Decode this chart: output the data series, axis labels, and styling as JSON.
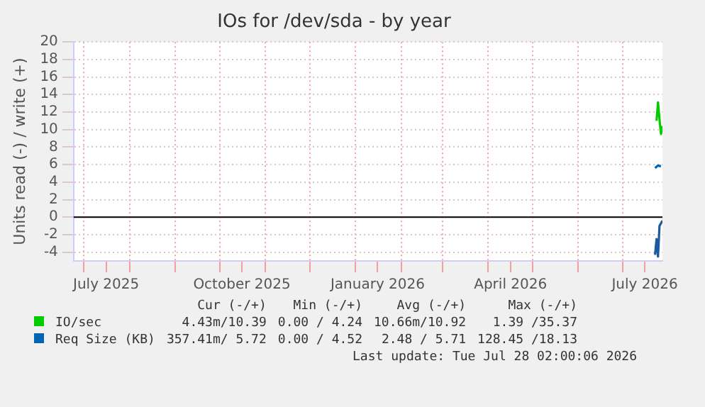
{
  "chart_data": {
    "type": "line",
    "title": "IOs for /dev/sda - by year",
    "ylabel": "Units read (-) / write (+)",
    "x": [
      "2026-07-24",
      "2026-07-25",
      "2026-07-26",
      "2026-07-27",
      "2026-07-28"
    ],
    "series": [
      {
        "name": "IO/sec",
        "color": "#00cc00",
        "values": [
          11.0,
          13.1,
          11.2,
          9.5,
          10.4
        ]
      },
      {
        "name": "Req Size (KB)",
        "color": "#0066b3",
        "x": [
          "2026-07-23",
          "2026-07-25",
          "2026-07-27"
        ],
        "values": [
          5.6,
          5.9,
          5.8
        ]
      },
      {
        "color": "#1a5aa0",
        "x": [
          "2026-07-23",
          "2026-07-24",
          "2026-07-25",
          "2026-07-26",
          "2026-07-28"
        ],
        "values": [
          -4.3,
          -2.5,
          -4.5,
          -1.0,
          -0.4
        ]
      }
    ],
    "xlim": [
      "2025-06-24",
      "2026-07-28"
    ],
    "xticks": [
      {
        "value": "2025-07-01",
        "label": null
      },
      {
        "value": "2025-07-16",
        "label": "July 2025"
      },
      {
        "value": "2025-08-01",
        "label": null
      },
      {
        "value": "2025-09-01",
        "label": null
      },
      {
        "value": "2025-10-01",
        "label": null
      },
      {
        "value": "2025-10-16",
        "label": "October 2025"
      },
      {
        "value": "2025-11-01",
        "label": null
      },
      {
        "value": "2025-12-01",
        "label": null
      },
      {
        "value": "2026-01-01",
        "label": null
      },
      {
        "value": "2026-01-16",
        "label": "January 2026"
      },
      {
        "value": "2026-02-01",
        "label": null
      },
      {
        "value": "2026-03-01",
        "label": null
      },
      {
        "value": "2026-04-01",
        "label": null
      },
      {
        "value": "2026-04-16",
        "label": "April 2026"
      },
      {
        "value": "2026-05-01",
        "label": null
      },
      {
        "value": "2026-06-01",
        "label": null
      },
      {
        "value": "2026-07-01",
        "label": null
      },
      {
        "value": "2026-07-16",
        "label": "July 2026"
      }
    ],
    "ylim": [
      -5,
      20
    ],
    "yticks": [
      -4,
      -2,
      0,
      2,
      4,
      6,
      8,
      10,
      12,
      14,
      16,
      18,
      20
    ],
    "ref_lines": [
      {
        "axis": "y",
        "value": 0,
        "color": "#000000"
      }
    ],
    "grid": true,
    "legend": "bottom",
    "marker": "none",
    "line_style": "solid",
    "annotations": [
      "Cur (-/+)",
      "Min (-/+)",
      "Avg (-/+)",
      "Max (-/+)",
      "4.43m/10.39",
      "0.00 / 4.24",
      "10.66m/10.92",
      "1.39 /35.37",
      "357.41m/ 5.72",
      "0.00 / 4.52",
      "2.48 / 5.71",
      "128.45 /18.13",
      "Last update: Tue Jul 28 02:00:06 2026"
    ]
  }
}
